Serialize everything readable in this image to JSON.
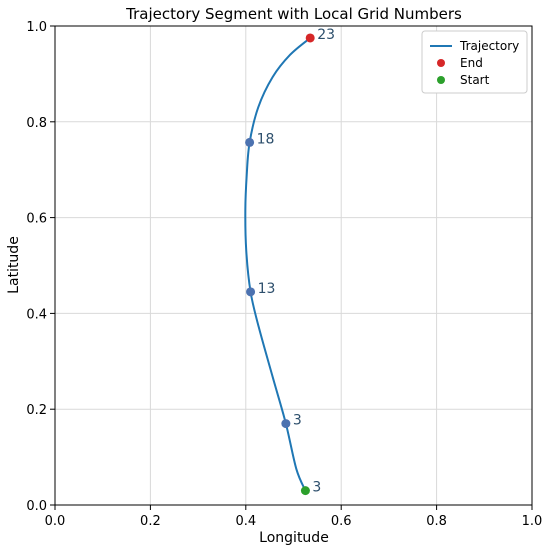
{
  "chart_data": {
    "type": "line",
    "title": "Trajectory Segment with Local Grid Numbers",
    "xlabel": "Longitude",
    "ylabel": "Latitude",
    "xlim": [
      0.0,
      1.0
    ],
    "ylim": [
      0.0,
      1.0
    ],
    "xticks": [
      "0.0",
      "0.2",
      "0.4",
      "0.6",
      "0.8",
      "1.0"
    ],
    "yticks": [
      "0.0",
      "0.2",
      "0.4",
      "0.6",
      "0.8",
      "1.0"
    ],
    "grid": true,
    "legend_position": "top-right",
    "series": [
      {
        "name": "Trajectory",
        "color": "#1f77b4",
        "x": [
          0.525,
          0.506,
          0.484,
          0.457,
          0.427,
          0.41,
          0.401,
          0.399,
          0.402,
          0.408,
          0.426,
          0.456,
          0.493,
          0.535
        ],
        "y": [
          0.03,
          0.075,
          0.17,
          0.265,
          0.372,
          0.445,
          0.53,
          0.615,
          0.69,
          0.757,
          0.83,
          0.893,
          0.94,
          0.975
        ]
      }
    ],
    "markers": [
      {
        "x": 0.484,
        "y": 0.17,
        "label": "3",
        "color": "#4c72b0"
      },
      {
        "x": 0.41,
        "y": 0.445,
        "label": "13",
        "color": "#4c72b0"
      },
      {
        "x": 0.408,
        "y": 0.757,
        "label": "18",
        "color": "#4c72b0"
      },
      {
        "x": 0.525,
        "y": 0.03,
        "label": "3",
        "color": "#2ca02c"
      },
      {
        "x": 0.535,
        "y": 0.975,
        "label": "23",
        "color": "#d62728"
      }
    ],
    "legend": [
      {
        "label": "Trajectory",
        "kind": "line",
        "color": "#1f77b4"
      },
      {
        "label": "End",
        "kind": "dot",
        "color": "#d62728"
      },
      {
        "label": "Start",
        "kind": "dot",
        "color": "#2ca02c"
      }
    ]
  }
}
